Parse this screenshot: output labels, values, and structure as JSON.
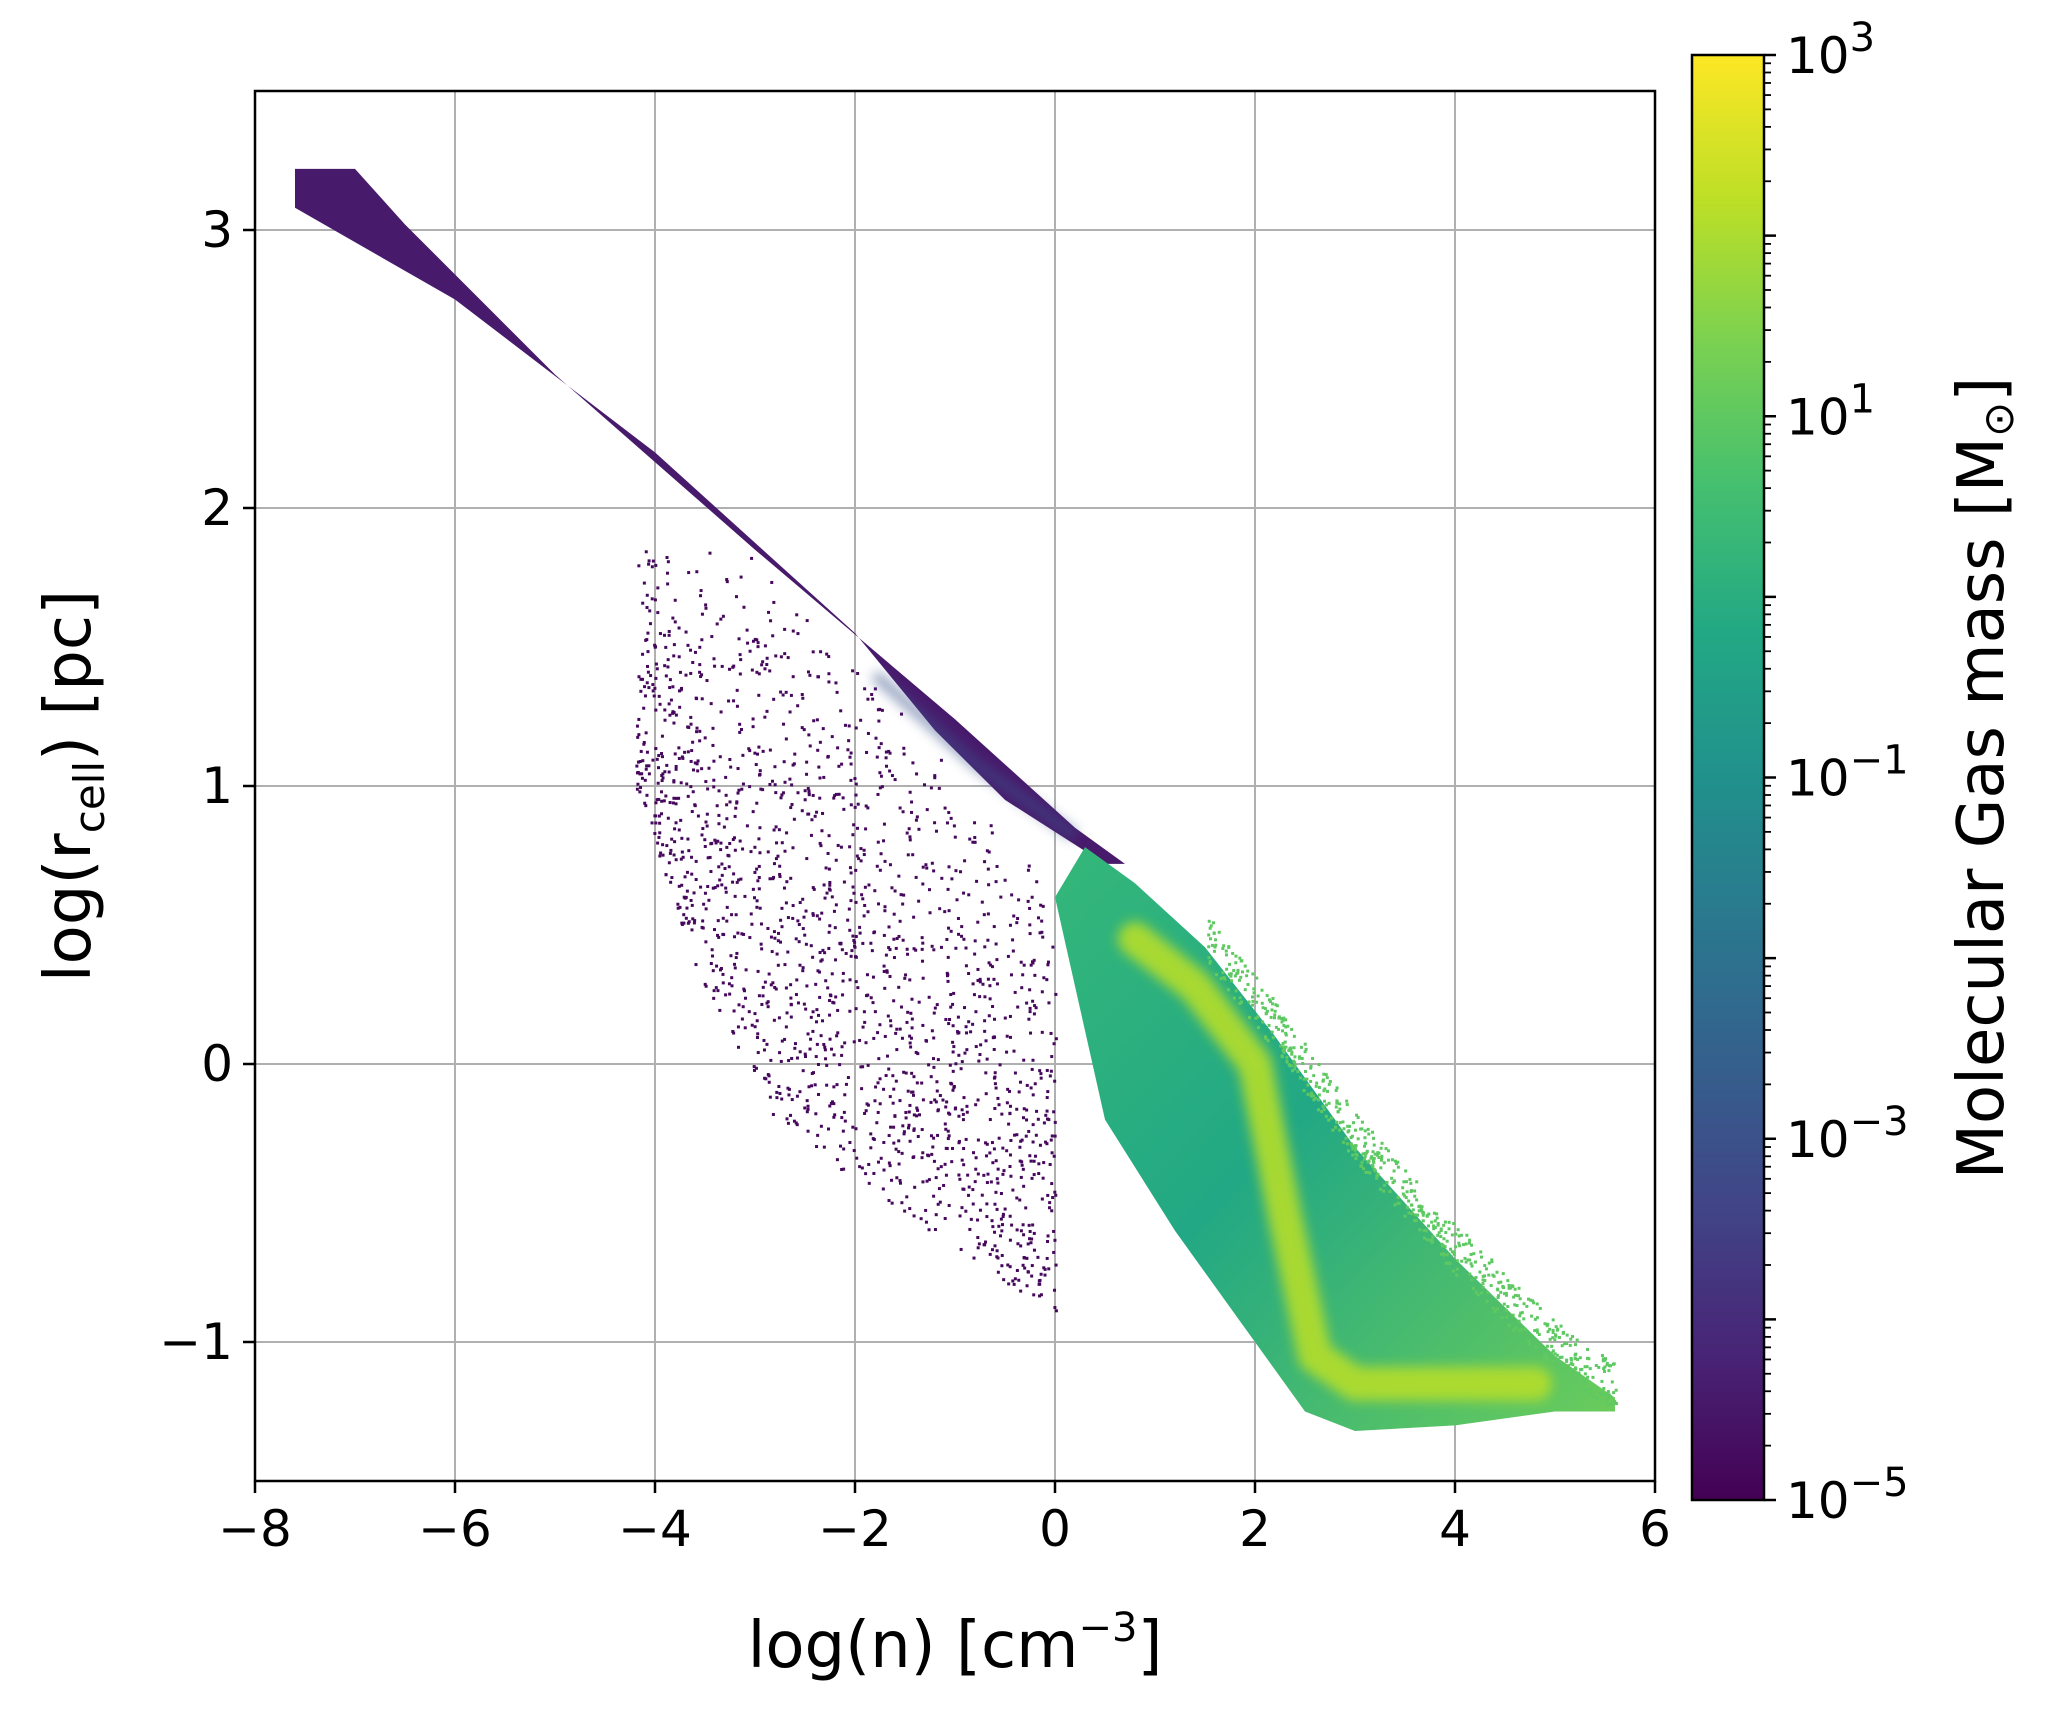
{
  "chart_data": {
    "type": "heatmap",
    "title": "",
    "xlabel": {
      "prefix": "log(n) [cm",
      "sup": "−3",
      "suffix": "]"
    },
    "ylabel": {
      "prefix": "log(r",
      "sub": "cell",
      "suffix": ") [pc]"
    },
    "xlim": [
      -8,
      6
    ],
    "ylim": [
      -1.5,
      3.5
    ],
    "xticks": [
      -8,
      -6,
      -4,
      -2,
      0,
      2,
      4,
      6
    ],
    "xtick_labels": [
      "−8",
      "−6",
      "−4",
      "−2",
      "0",
      "2",
      "4",
      "6"
    ],
    "yticks": [
      -1,
      0,
      1,
      2,
      3
    ],
    "ytick_labels": [
      "−1",
      "0",
      "1",
      "2",
      "3"
    ],
    "grid": true,
    "colorbar": {
      "label": "Molecular Gas mass [M",
      "label_symbol": "⊙",
      "label_end": "]",
      "scale": "log",
      "range": [
        1e-05,
        1000.0
      ],
      "colormap": "viridis",
      "ticks": [
        {
          "value": 1e-05,
          "base": "10",
          "exp": "−5"
        },
        {
          "value": 0.001,
          "base": "10",
          "exp": "−3"
        },
        {
          "value": 0.1,
          "base": "10",
          "exp": "−1"
        },
        {
          "value": 10.0,
          "base": "10",
          "exp": "1"
        },
        {
          "value": 1000.0,
          "base": "10",
          "exp": "3"
        }
      ]
    },
    "regions": {
      "diffuse_band_upper": [
        [
          -7.6,
          3.22
        ],
        [
          -7.0,
          3.22
        ],
        [
          -6.5,
          3.02
        ],
        [
          -5.0,
          2.48
        ],
        [
          -3.0,
          1.85
        ],
        [
          -1.0,
          1.24
        ],
        [
          0.2,
          0.85
        ],
        [
          0.7,
          0.72
        ]
      ],
      "diffuse_band_lower": [
        [
          -7.6,
          3.08
        ],
        [
          -6.0,
          2.75
        ],
        [
          -4.0,
          2.2
        ],
        [
          -2.0,
          1.55
        ],
        [
          -1.2,
          1.2
        ],
        [
          -0.5,
          0.95
        ],
        [
          0.5,
          0.72
        ]
      ],
      "molecular_core_upper": [
        [
          0.3,
          0.78
        ],
        [
          0.8,
          0.65
        ],
        [
          1.5,
          0.42
        ],
        [
          2.2,
          0.1
        ],
        [
          3.0,
          -0.3
        ],
        [
          4.0,
          -0.7
        ],
        [
          5.0,
          -1.05
        ],
        [
          5.6,
          -1.2
        ]
      ],
      "molecular_core_lower": [
        [
          0.0,
          0.6
        ],
        [
          0.5,
          -0.2
        ],
        [
          1.2,
          -0.6
        ],
        [
          1.8,
          -0.9
        ],
        [
          2.5,
          -1.25
        ],
        [
          3.0,
          -1.32
        ],
        [
          4.0,
          -1.3
        ],
        [
          5.0,
          -1.25
        ],
        [
          5.6,
          -1.25
        ]
      ],
      "sparse_tail_upper": [
        [
          -4.3,
          1.85
        ],
        [
          -3.0,
          1.85
        ],
        [
          -1.5,
          1.25
        ],
        [
          0.0,
          0.6
        ]
      ],
      "sparse_tail_lower": [
        [
          -4.2,
          1.0
        ],
        [
          -3.6,
          0.35
        ],
        [
          -2.8,
          -0.2
        ],
        [
          -1.5,
          -0.55
        ],
        [
          -0.2,
          -0.85
        ],
        [
          1.0,
          -1.05
        ],
        [
          2.0,
          -1.12
        ]
      ],
      "ridge": [
        [
          0.8,
          0.45
        ],
        [
          1.4,
          0.28
        ],
        [
          2.0,
          0.0
        ],
        [
          2.3,
          -0.55
        ],
        [
          2.6,
          -1.05
        ],
        [
          3.0,
          -1.15
        ],
        [
          4.0,
          -1.15
        ],
        [
          4.8,
          -1.15
        ]
      ]
    }
  }
}
